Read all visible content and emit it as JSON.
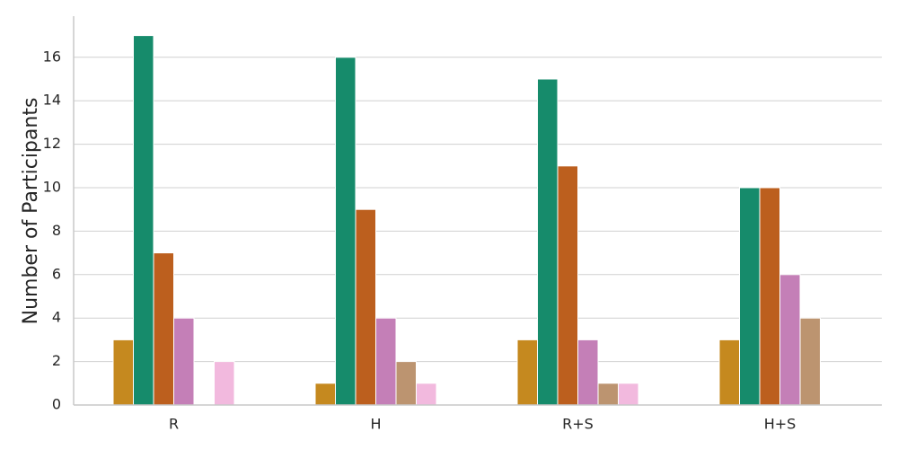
{
  "chart_data": {
    "type": "bar",
    "title": "",
    "xlabel": "",
    "ylabel": "Number of Participants",
    "categories": [
      "R",
      "H",
      "R+S",
      "H+S"
    ],
    "ylim": [
      0,
      18
    ],
    "yticks": [
      "0",
      "2",
      "4",
      "6",
      "8",
      "10",
      "12",
      "14",
      "16"
    ],
    "grid": "horizontal",
    "legend": "none",
    "series": [
      {
        "color": "#c5891f",
        "values": [
          3,
          1,
          3,
          3
        ]
      },
      {
        "color": "#168b6b",
        "values": [
          17,
          16,
          15,
          10
        ]
      },
      {
        "color": "#bc5f1e",
        "values": [
          7,
          9,
          11,
          10
        ]
      },
      {
        "color": "#c47fb7",
        "values": [
          4,
          4,
          3,
          6
        ]
      },
      {
        "color": "#bc9470",
        "values": [
          0,
          2,
          1,
          4
        ]
      },
      {
        "color": "#f2b9de",
        "values": [
          2,
          1,
          1,
          0
        ]
      }
    ]
  }
}
